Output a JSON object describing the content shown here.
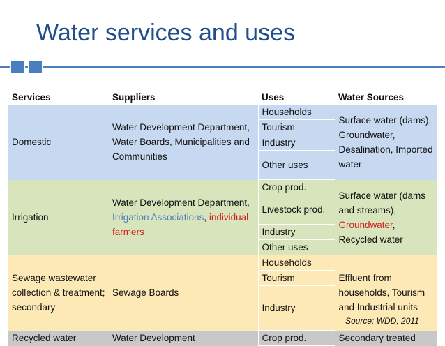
{
  "title": "Water services and uses",
  "headers": {
    "services": "Services",
    "suppliers": "Suppliers",
    "uses": "Uses",
    "sources": "Water Sources"
  },
  "domestic": {
    "service": "Domestic",
    "supplier": "Water Development Department, Water Boards, Municipalities and Communities",
    "uses": [
      "Households",
      "Tourism",
      "Industry",
      "Other uses"
    ],
    "sources": "Surface water (dams), Groundwater, Desalination, Imported water"
  },
  "irrigation": {
    "service": "Irrigation",
    "supplier_a": "Water Development Department, ",
    "supplier_b": "Irrigation Associations",
    "supplier_c": ", ",
    "supplier_d": "individual farmers",
    "uses": [
      "Crop prod.",
      "Livestock prod.",
      "Industry",
      "Other uses"
    ],
    "sources_a": "Surface water (dams and streams), ",
    "sources_b": "Groundwater",
    "sources_c": ", Recycled water"
  },
  "sewage": {
    "service": "Sewage wastewater collection & treatment; secondary",
    "supplier": "Sewage Boards",
    "uses": [
      "Households",
      "Tourism",
      "Industry"
    ],
    "sources": "Effluent from households, Tourism and Industrial units"
  },
  "recycled": {
    "service": "Recycled water",
    "supplier": "Water Development",
    "use": "Crop prod.",
    "sources": "Secondary treated"
  },
  "source_note": "Source: WDD, 2011",
  "colors": {
    "title": "#1f4e8c",
    "accent": "#4a7fbf",
    "blue": "#c6d9f1",
    "green": "#d8e4bc",
    "tan": "#fde9b5",
    "red": "#d21f1f"
  }
}
